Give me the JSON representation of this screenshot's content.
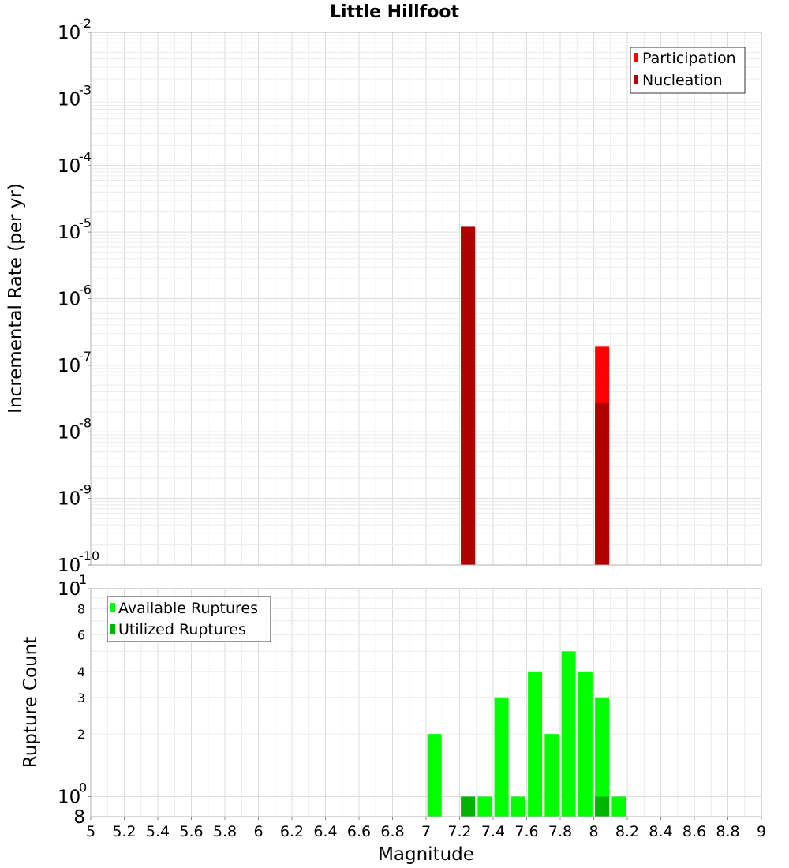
{
  "chart_data": [
    {
      "type": "bar",
      "title": "Little Hillfoot",
      "xlabel": "",
      "ylabel": "Incremental Rate (per yr)",
      "yscale": "log",
      "ylim": [
        1e-10,
        0.01
      ],
      "y_tick_exponents": [
        "-2",
        "-3",
        "-4",
        "-5",
        "-6",
        "-7",
        "-8",
        "-9",
        "-10"
      ],
      "y_tick_base": "10",
      "xlim": [
        5,
        9
      ],
      "grid": true,
      "legend_position": "top-right",
      "series": [
        {
          "name": "Participation",
          "color": "#ff0000",
          "points": [
            [
              7.25,
              1.2e-05
            ],
            [
              8.05,
              1.9e-07
            ]
          ]
        },
        {
          "name": "Nucleation",
          "color": "#b00000",
          "points": [
            [
              7.25,
              1.2e-05
            ],
            [
              8.05,
              2.7e-08
            ]
          ]
        }
      ]
    },
    {
      "type": "bar",
      "title": "",
      "xlabel": "Magnitude",
      "ylabel": "Rupture Count",
      "yscale": "log",
      "ylim": [
        0.8,
        10
      ],
      "y_major_tick_exponents": [
        "1",
        "0"
      ],
      "y_tick_base": "10",
      "y_minor_ticks": [
        "8",
        "6",
        "4",
        "3",
        "2",
        "8"
      ],
      "xlim": [
        5,
        9
      ],
      "x_ticks": [
        "5",
        "5.2",
        "5.4",
        "5.6",
        "5.8",
        "6",
        "6.2",
        "6.4",
        "6.6",
        "6.8",
        "7",
        "7.2",
        "7.4",
        "7.6",
        "7.8",
        "8",
        "8.2",
        "8.4",
        "8.6",
        "8.8",
        "9"
      ],
      "grid": true,
      "legend_position": "top-left",
      "series": [
        {
          "name": "Available Ruptures",
          "color": "#00ff00",
          "points": [
            [
              7.05,
              2
            ],
            [
              7.25,
              1
            ],
            [
              7.35,
              1
            ],
            [
              7.45,
              3
            ],
            [
              7.55,
              1
            ],
            [
              7.65,
              4
            ],
            [
              7.75,
              2
            ],
            [
              7.85,
              5
            ],
            [
              7.95,
              4
            ],
            [
              8.05,
              3
            ],
            [
              8.15,
              1
            ]
          ]
        },
        {
          "name": "Utilized Ruptures",
          "color": "#00b400",
          "points": [
            [
              7.25,
              1
            ],
            [
              8.05,
              1
            ]
          ]
        }
      ]
    }
  ]
}
